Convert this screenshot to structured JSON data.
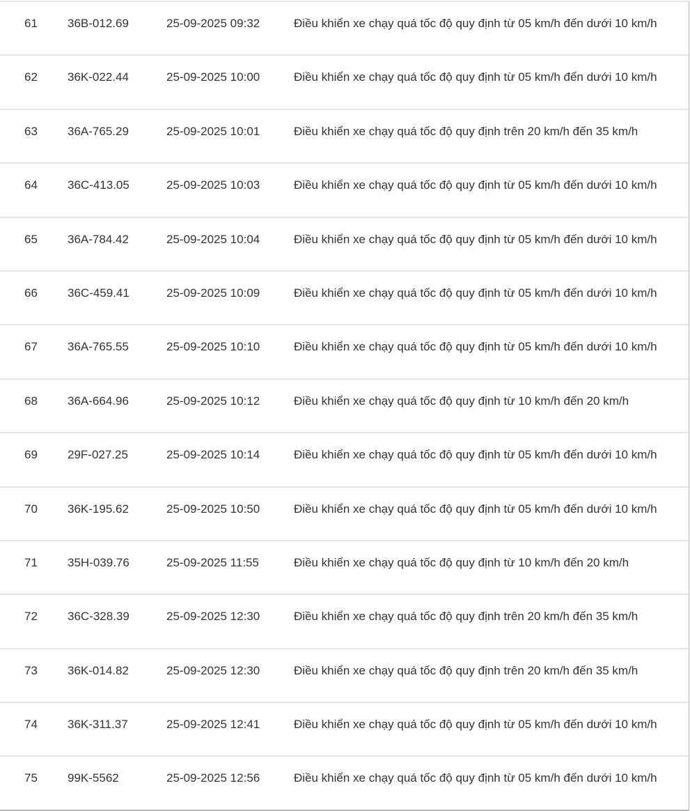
{
  "rows": [
    {
      "no": "61",
      "plate": "36B-012.69",
      "time": "25-09-2025 09:32",
      "violation": "Điều khiển xe chạy quá tốc độ quy định từ 05 km/h đến dưới 10 km/h"
    },
    {
      "no": "62",
      "plate": "36K-022.44",
      "time": "25-09-2025 10:00",
      "violation": "Điều khiển xe chạy quá tốc độ quy định từ 05 km/h đến dưới 10 km/h"
    },
    {
      "no": "63",
      "plate": "36A-765.29",
      "time": "25-09-2025 10:01",
      "violation": "Điều khiển xe chạy quá tốc độ quy định trên 20 km/h đến 35 km/h"
    },
    {
      "no": "64",
      "plate": "36C-413.05",
      "time": "25-09-2025 10:03",
      "violation": "Điều khiển xe chạy quá tốc độ quy định từ 05 km/h đến dưới 10 km/h"
    },
    {
      "no": "65",
      "plate": "36A-784.42",
      "time": "25-09-2025 10:04",
      "violation": "Điều khiển xe chạy quá tốc độ quy định từ 05 km/h đến dưới 10 km/h"
    },
    {
      "no": "66",
      "plate": "36C-459.41",
      "time": "25-09-2025 10:09",
      "violation": "Điều khiển xe chạy quá tốc độ quy định từ 05 km/h đến dưới 10 km/h"
    },
    {
      "no": "67",
      "plate": "36A-765.55",
      "time": "25-09-2025 10:10",
      "violation": "Điều khiển xe chạy quá tốc độ quy định từ 05 km/h đến dưới 10 km/h"
    },
    {
      "no": "68",
      "plate": "36A-664.96",
      "time": "25-09-2025 10:12",
      "violation": "Điều khiển xe chạy quá tốc độ quy định từ 10 km/h đến 20 km/h"
    },
    {
      "no": "69",
      "plate": "29F-027.25",
      "time": "25-09-2025 10:14",
      "violation": "Điều khiển xe chạy quá tốc độ quy định từ 05 km/h đến dưới 10 km/h"
    },
    {
      "no": "70",
      "plate": "36K-195.62",
      "time": "25-09-2025 10:50",
      "violation": "Điều khiển xe chạy quá tốc độ quy định từ 05 km/h đến dưới 10 km/h"
    },
    {
      "no": "71",
      "plate": "35H-039.76",
      "time": "25-09-2025 11:55",
      "violation": "Điều khiển xe chạy quá tốc độ quy định từ 10 km/h đến 20 km/h"
    },
    {
      "no": "72",
      "plate": "36C-328.39",
      "time": "25-09-2025 12:30",
      "violation": "Điều khiển xe chạy quá tốc độ quy định trên 20 km/h đến 35 km/h"
    },
    {
      "no": "73",
      "plate": "36K-014.82",
      "time": "25-09-2025 12:30",
      "violation": "Điều khiển xe chạy quá tốc độ quy định trên 20 km/h đến 35 km/h"
    },
    {
      "no": "74",
      "plate": "36K-311.37",
      "time": "25-09-2025 12:41",
      "violation": "Điều khiển xe chạy quá tốc độ quy định từ 05 km/h đến dưới 10 km/h"
    },
    {
      "no": "75",
      "plate": "99K-5562",
      "time": "25-09-2025 12:56",
      "violation": "Điều khiển xe chạy quá tốc độ quy định từ 05 km/h đến dưới 10 km/h"
    }
  ]
}
